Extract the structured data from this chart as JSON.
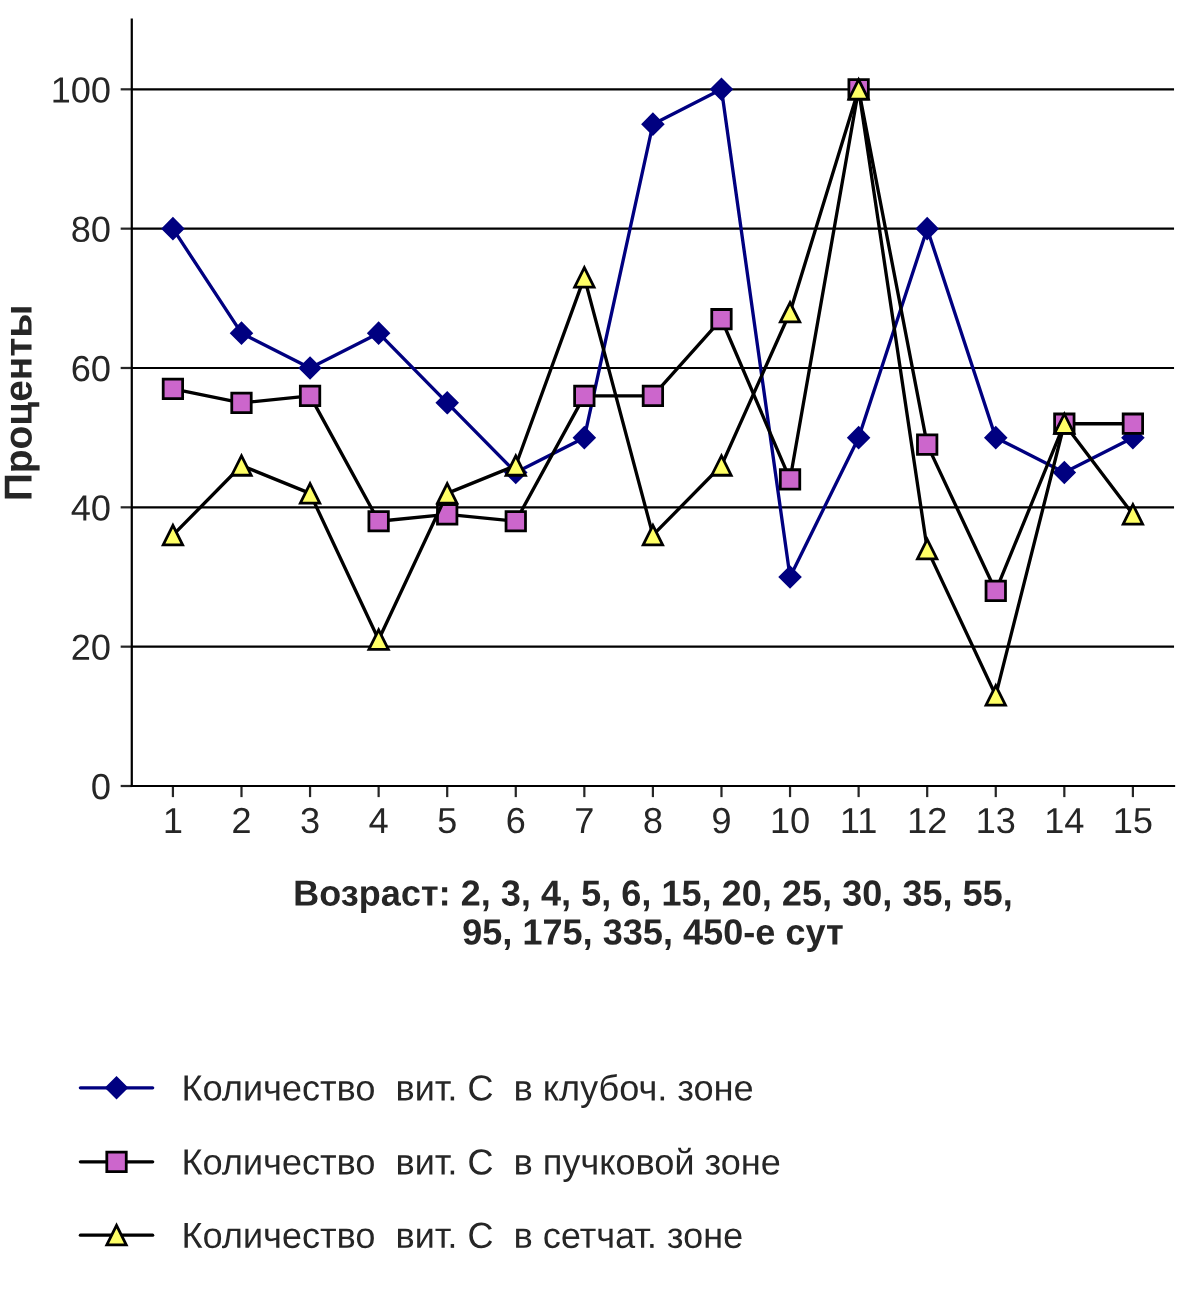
{
  "chart_data": {
    "type": "line",
    "xlabel": "Возраст: 2, 3, 4, 5, 6, 15, 20, 25, 30, 35, 55,\n95, 175, 335, 450-е сут",
    "ylabel": "Проценты",
    "categories": [
      "1",
      "2",
      "3",
      "4",
      "5",
      "6",
      "7",
      "8",
      "9",
      "10",
      "11",
      "12",
      "13",
      "14",
      "15"
    ],
    "series": [
      {
        "name": "Количество  вит. С  в клубоч. зоне",
        "color": "#000080",
        "marker": "diamond",
        "values": [
          80,
          65,
          60,
          65,
          55,
          45,
          50,
          95,
          100,
          30,
          50,
          80,
          50,
          45,
          50
        ]
      },
      {
        "name": "Количество  вит. С  в пучковой зоне",
        "color": "#cc66cc",
        "marker": "square",
        "values": [
          57,
          55,
          56,
          38,
          39,
          38,
          56,
          56,
          67,
          44,
          100,
          49,
          28,
          52,
          52
        ]
      },
      {
        "name": "Количество  вит. С  в сетчат. зоне",
        "color": "#ffff66",
        "marker": "triangle",
        "values": [
          36,
          46,
          42,
          21,
          42,
          46,
          73,
          36,
          46,
          68,
          100,
          34,
          13,
          52,
          39
        ]
      }
    ],
    "ylim": [
      0,
      110
    ],
    "yticks": [
      0,
      20,
      40,
      60,
      80,
      100
    ],
    "grid": "y",
    "legend": "bottom",
    "line_style": "solid"
  }
}
